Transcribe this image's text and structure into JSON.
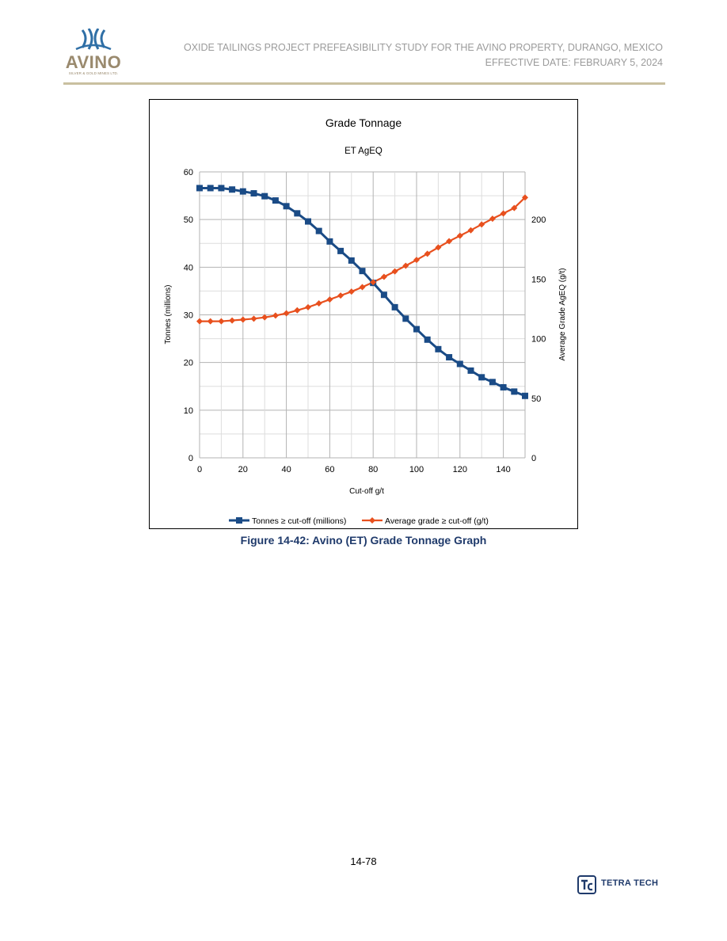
{
  "header": {
    "logo_name": "AVINO",
    "logo_sub": "SILVER & GOLD MINES LTD.",
    "title_line1": "OXIDE TAILINGS PROJECT PREFEASIBILITY STUDY FOR THE AVINO PROPERTY, DURANGO, MEXICO",
    "title_line2": "EFFECTIVE DATE: FEBRUARY 5, 2024"
  },
  "figure": {
    "caption": "Figure 14-42: Avino (ET) Grade Tonnage Graph"
  },
  "footer": {
    "page_number": "14-78",
    "company": "TETRA TECH"
  },
  "colors": {
    "tonnes_series": "#1a4b86",
    "grade_series": "#e8501e",
    "header_text": "#9b9b9b",
    "caption_text": "#1f3a6b",
    "header_rule": "#c9c0a0"
  },
  "chart_data": {
    "type": "line",
    "title": "Grade Tonnage",
    "subtitle": "ET AgEQ",
    "xlabel": "Cut-off g/t",
    "ylabel_left": "Tonnes (millions)",
    "ylabel_right": "Average Grade AgEQ (g/t)",
    "xlim": [
      0,
      150
    ],
    "ylim_left": [
      0,
      60
    ],
    "ylim_right": [
      0,
      240
    ],
    "x_ticks": [
      0,
      20,
      40,
      60,
      80,
      100,
      120,
      140
    ],
    "y_left_ticks": [
      0,
      10,
      20,
      30,
      40,
      50,
      60
    ],
    "y_right_ticks": [
      0,
      50,
      100,
      150,
      200
    ],
    "grid": true,
    "legend_position": "bottom",
    "x": [
      0,
      5,
      10,
      15,
      20,
      25,
      30,
      35,
      40,
      45,
      50,
      55,
      60,
      65,
      70,
      75,
      80,
      85,
      90,
      95,
      100,
      105,
      110,
      115,
      120,
      125,
      130,
      135,
      140,
      145,
      150
    ],
    "series": [
      {
        "name": "Tonnes ≥ cut-off (millions)",
        "axis": "left",
        "marker": "square",
        "values": [
          56.6,
          56.6,
          56.6,
          56.3,
          55.9,
          55.5,
          54.9,
          54.0,
          52.8,
          51.3,
          49.6,
          47.6,
          45.4,
          43.4,
          41.4,
          39.2,
          36.7,
          34.2,
          31.6,
          29.2,
          27.0,
          24.8,
          22.8,
          21.1,
          19.7,
          18.3,
          16.9,
          15.9,
          14.8,
          13.9,
          13.0
        ]
      },
      {
        "name": "Average grade ≥ cut-off (g/t)",
        "axis": "right",
        "marker": "diamond",
        "values": [
          114.6,
          114.6,
          114.6,
          115.3,
          116.0,
          116.8,
          117.9,
          119.4,
          121.3,
          123.8,
          126.4,
          129.6,
          132.9,
          136.2,
          139.5,
          143.3,
          147.4,
          151.9,
          156.5,
          161.2,
          166.1,
          171.3,
          176.6,
          181.8,
          186.4,
          191.0,
          195.9,
          200.7,
          205.1,
          209.7,
          218.5
        ]
      }
    ]
  }
}
